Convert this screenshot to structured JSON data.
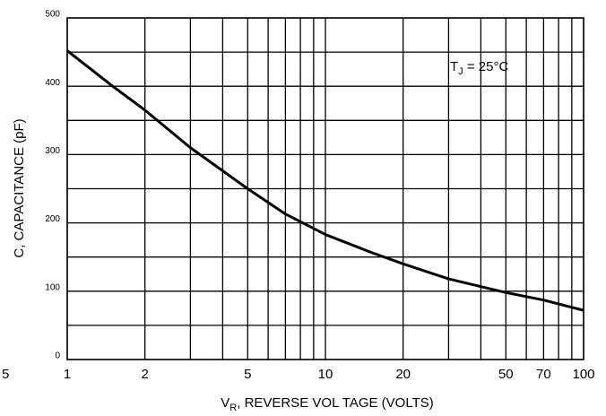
{
  "chart_data": {
    "type": "line",
    "y_label": "C, CAPACITANCE (pF)",
    "x_label": {
      "main": "V",
      "sub": "R",
      "rest": ", REVERSE VOL TAGE (VOLTS)"
    },
    "annotation": {
      "main": "T",
      "sub": "J",
      "rest": " = 25°C"
    },
    "stray_label": "5",
    "log_x": true,
    "xlim": [
      1,
      100
    ],
    "ylim": [
      0,
      500
    ],
    "xticks": [
      1,
      2,
      5,
      10,
      20,
      50,
      70,
      100
    ],
    "yticks": [
      0,
      100,
      200,
      300,
      400,
      500
    ],
    "xgrid": [
      1,
      2,
      3,
      4,
      5,
      6,
      7,
      8,
      9,
      10,
      20,
      30,
      40,
      50,
      60,
      70,
      80,
      90,
      100
    ],
    "ygrid": [
      0,
      50,
      100,
      150,
      200,
      250,
      300,
      350,
      400,
      450,
      500
    ],
    "grid": true,
    "series": [
      {
        "color": "#000000",
        "x": [
          1,
          1.5,
          2,
          3,
          5,
          7,
          10,
          15,
          20,
          30,
          50,
          70,
          100
        ],
        "values": [
          452,
          400,
          365,
          310,
          250,
          213,
          183,
          157,
          140,
          118,
          98,
          87,
          72
        ]
      }
    ]
  }
}
